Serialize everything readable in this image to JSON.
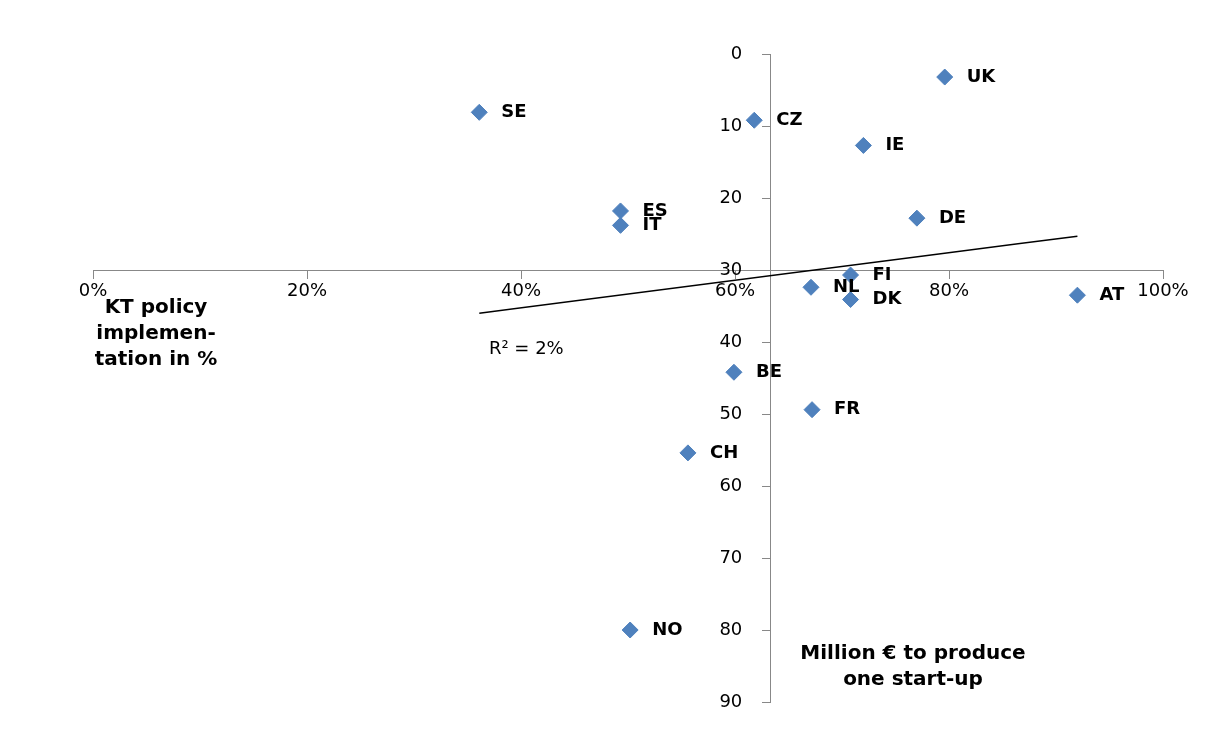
{
  "chart_data": {
    "type": "scatter",
    "xlabel": "KT policy\nimplemen-\ntation in %",
    "ylabel": "Million € to produce\none start-up",
    "x": [
      36.1,
      61.8,
      79.6,
      72.0,
      49.3,
      49.3,
      77.0,
      70.8,
      67.1,
      70.8,
      92.0,
      59.9,
      67.2,
      55.6,
      50.2
    ],
    "series": [
      {
        "color": "#4f81bd",
        "marker": "diamond",
        "values": [
          8.1,
          9.2,
          3.2,
          12.7,
          21.8,
          23.8,
          22.8,
          30.7,
          32.4,
          34.1,
          33.5,
          44.2,
          49.4,
          55.4,
          80.0
        ],
        "value_labels": [
          "SE",
          "CZ",
          "UK",
          "IE",
          "ES",
          "IT",
          "DE",
          "FI",
          "NL",
          "DK",
          "AT",
          "BE",
          "FR",
          "CH",
          "NO"
        ]
      },
      {
        "type": "line",
        "color": "#000000",
        "marker": "none",
        "x": [
          36.1,
          92.0
        ],
        "values": [
          36.0,
          25.3
        ]
      }
    ],
    "annotations": [
      "R² = 2%"
    ],
    "xlim": [
      0,
      100
    ],
    "xticks": [
      {
        "value": 0,
        "label": "0%"
      },
      {
        "value": 20,
        "label": "20%"
      },
      {
        "value": 40,
        "label": "40%"
      },
      {
        "value": 60,
        "label": "60%"
      },
      {
        "value": 80,
        "label": "80%"
      },
      {
        "value": 100,
        "label": "100%"
      }
    ],
    "ylim": [
      90,
      0
    ],
    "yticks": [
      0,
      10,
      20,
      30,
      40,
      50,
      60,
      70,
      80,
      90
    ],
    "grid": false,
    "legend": false
  }
}
